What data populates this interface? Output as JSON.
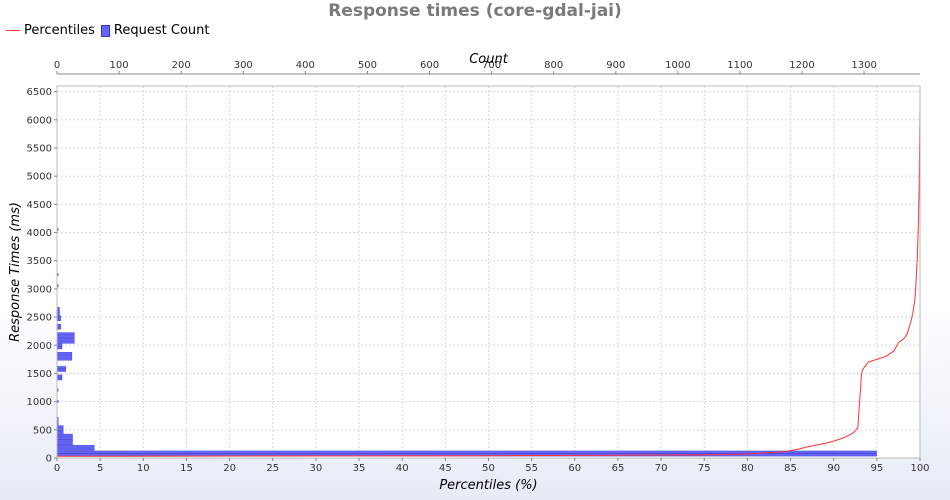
{
  "chart_data": {
    "type": "line",
    "title": "Response times (core-gdal-jai)",
    "legend": {
      "position": "top-left",
      "entries": [
        "Percentiles",
        "Request Count"
      ]
    },
    "xlabel": "Percentiles (%)",
    "x2label": "Count",
    "ylabel": "Response Times (ms)",
    "xlim": [
      0,
      100
    ],
    "x2lim": [
      0,
      1390
    ],
    "ylim": [
      0,
      6600
    ],
    "grid": true,
    "xticks": [
      0,
      5,
      10,
      15,
      20,
      25,
      30,
      35,
      40,
      45,
      50,
      55,
      60,
      65,
      70,
      75,
      80,
      85,
      90,
      95,
      100
    ],
    "x2ticks": [
      0,
      100,
      200,
      300,
      400,
      500,
      600,
      700,
      800,
      900,
      1000,
      1100,
      1200,
      1300
    ],
    "yticks": [
      0,
      500,
      1000,
      1500,
      2000,
      2500,
      3000,
      3500,
      4000,
      4500,
      5000,
      5500,
      6000,
      6500
    ],
    "series": [
      {
        "name": "Percentiles",
        "type": "line",
        "color": "#ff3333",
        "x": [
          0,
          50,
          75,
          80,
          82,
          84,
          85,
          86,
          87,
          88,
          89,
          90,
          91,
          92,
          92.5,
          92.8,
          93,
          93.1,
          93.2,
          93.3,
          93.5,
          94,
          95,
          96,
          97,
          97.5,
          98,
          98.3,
          98.5,
          98.7,
          99,
          99.2,
          99.4,
          99.5,
          99.6,
          99.7,
          99.8,
          99.9,
          100
        ],
        "y": [
          30,
          40,
          55,
          70,
          90,
          110,
          130,
          160,
          200,
          230,
          260,
          300,
          350,
          420,
          480,
          540,
          1000,
          1200,
          1450,
          1550,
          1600,
          1700,
          1750,
          1800,
          1900,
          2050,
          2100,
          2150,
          2200,
          2300,
          2450,
          2600,
          2800,
          3000,
          3300,
          3600,
          4100,
          4800,
          6300
        ]
      },
      {
        "name": "Request Count",
        "type": "hbar",
        "color": "#6666ff",
        "bins": [
          {
            "y": 50,
            "count": 1320
          },
          {
            "y": 100,
            "count": 1320
          },
          {
            "y": 150,
            "count": 60
          },
          {
            "y": 200,
            "count": 60
          },
          {
            "y": 250,
            "count": 25
          },
          {
            "y": 300,
            "count": 25
          },
          {
            "y": 350,
            "count": 25
          },
          {
            "y": 400,
            "count": 25
          },
          {
            "y": 450,
            "count": 10
          },
          {
            "y": 500,
            "count": 10
          },
          {
            "y": 550,
            "count": 10
          },
          {
            "y": 600,
            "count": 2
          },
          {
            "y": 650,
            "count": 2
          },
          {
            "y": 700,
            "count": 2
          },
          {
            "y": 1000,
            "count": 2
          },
          {
            "y": 1200,
            "count": 2
          },
          {
            "y": 1400,
            "count": 8
          },
          {
            "y": 1450,
            "count": 8
          },
          {
            "y": 1550,
            "count": 14
          },
          {
            "y": 1600,
            "count": 14
          },
          {
            "y": 1750,
            "count": 24
          },
          {
            "y": 1800,
            "count": 24
          },
          {
            "y": 1850,
            "count": 24
          },
          {
            "y": 1950,
            "count": 8
          },
          {
            "y": 2000,
            "count": 8
          },
          {
            "y": 2050,
            "count": 28
          },
          {
            "y": 2100,
            "count": 28
          },
          {
            "y": 2150,
            "count": 28
          },
          {
            "y": 2200,
            "count": 28
          },
          {
            "y": 2300,
            "count": 6
          },
          {
            "y": 2350,
            "count": 6
          },
          {
            "y": 2450,
            "count": 6
          },
          {
            "y": 2500,
            "count": 6
          },
          {
            "y": 2550,
            "count": 4
          },
          {
            "y": 2600,
            "count": 4
          },
          {
            "y": 2650,
            "count": 4
          },
          {
            "y": 3050,
            "count": 2
          },
          {
            "y": 3250,
            "count": 2
          },
          {
            "y": 4050,
            "count": 2
          }
        ]
      }
    ]
  }
}
